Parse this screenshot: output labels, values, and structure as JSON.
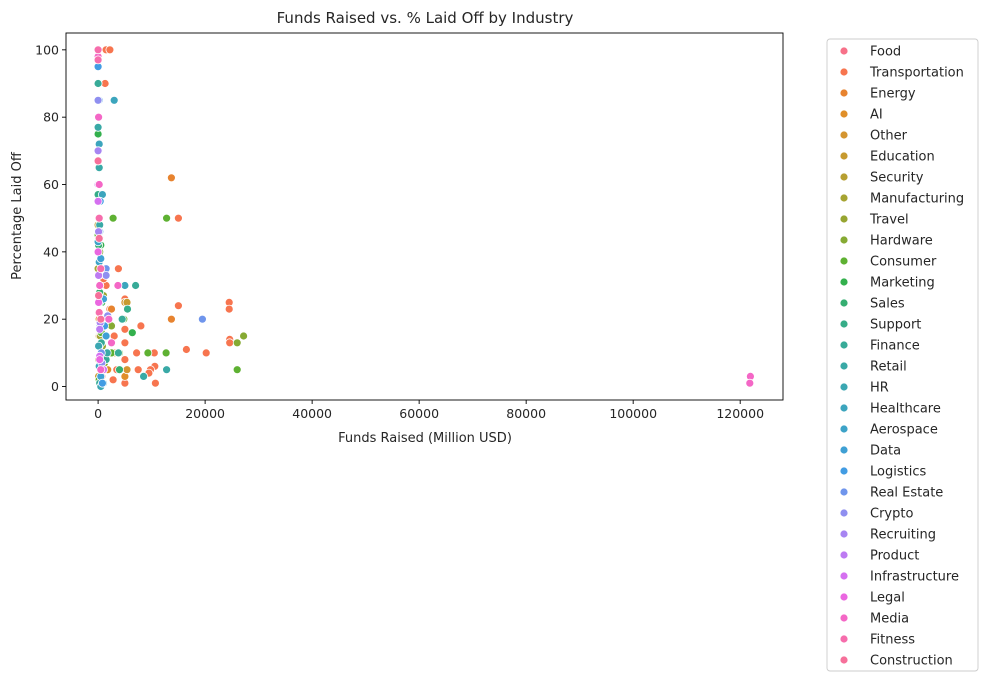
{
  "chart_data": {
    "type": "scatter",
    "title": "Funds Raised vs. % Laid Off by Industry",
    "xlabel": "Funds Raised (Million USD)",
    "ylabel": "Percentage Laid Off",
    "xlim": [
      -6000,
      128000
    ],
    "ylim": [
      -4,
      105
    ],
    "xticks": [
      0,
      20000,
      40000,
      60000,
      80000,
      100000,
      120000
    ],
    "yticks": [
      0,
      20,
      40,
      60,
      80,
      100
    ],
    "grid": false,
    "legend_position": "outside-right",
    "series": [
      {
        "name": "Food",
        "color": "#f77189",
        "points": [
          [
            0,
            100
          ],
          [
            100,
            45
          ],
          [
            300,
            20
          ],
          [
            200,
            8
          ],
          [
            50,
            60
          ]
        ]
      },
      {
        "name": "Transportation",
        "color": "#f7754f",
        "points": [
          [
            1500,
            100
          ],
          [
            2200,
            100
          ],
          [
            1300,
            90
          ],
          [
            3800,
            35
          ],
          [
            15000,
            50
          ],
          [
            15000,
            24
          ],
          [
            24500,
            25
          ],
          [
            24500,
            23
          ],
          [
            24600,
            14
          ],
          [
            24600,
            13
          ],
          [
            16500,
            11
          ],
          [
            20200,
            10
          ],
          [
            10500,
            10
          ],
          [
            10600,
            6
          ],
          [
            9800,
            5
          ],
          [
            9500,
            4
          ],
          [
            10700,
            1
          ],
          [
            7200,
            10
          ],
          [
            7500,
            5
          ],
          [
            8000,
            18
          ],
          [
            5000,
            26
          ],
          [
            5000,
            17
          ],
          [
            5000,
            13
          ],
          [
            5000,
            8
          ],
          [
            5000,
            3
          ],
          [
            5000,
            1
          ],
          [
            3000,
            15
          ],
          [
            3200,
            10
          ],
          [
            3500,
            5
          ],
          [
            2800,
            2
          ],
          [
            2000,
            20
          ],
          [
            2200,
            23
          ],
          [
            1500,
            30
          ],
          [
            1000,
            32
          ],
          [
            700,
            3
          ],
          [
            200,
            30
          ],
          [
            300,
            15
          ],
          [
            500,
            7
          ]
        ]
      },
      {
        "name": "Energy",
        "color": "#e7832f",
        "points": [
          [
            13700,
            62
          ],
          [
            13700,
            20
          ],
          [
            2500,
            23
          ],
          [
            500,
            10
          ],
          [
            200,
            15
          ]
        ]
      },
      {
        "name": "AI",
        "color": "#e08f29",
        "points": [
          [
            0,
            100
          ],
          [
            100,
            65
          ],
          [
            200,
            20
          ],
          [
            1800,
            5
          ],
          [
            5000,
            3
          ]
        ]
      },
      {
        "name": "Other",
        "color": "#d49530",
        "points": [
          [
            5000,
            25
          ],
          [
            4500,
            20
          ],
          [
            3000,
            10
          ],
          [
            5400,
            5
          ],
          [
            200,
            2
          ]
        ]
      },
      {
        "name": "Education",
        "color": "#c79a2f",
        "points": [
          [
            0,
            50
          ],
          [
            200,
            33
          ],
          [
            5400,
            25
          ],
          [
            300,
            12
          ],
          [
            100,
            3
          ]
        ]
      },
      {
        "name": "Security",
        "color": "#b79f31",
        "points": [
          [
            0,
            48
          ],
          [
            300,
            30
          ],
          [
            500,
            5
          ],
          [
            100,
            22
          ]
        ]
      },
      {
        "name": "Manufacturing",
        "color": "#a6a432",
        "points": [
          [
            0,
            35
          ],
          [
            200,
            25
          ],
          [
            400,
            15
          ],
          [
            100,
            8
          ]
        ]
      },
      {
        "name": "Travel",
        "color": "#97a531",
        "points": [
          [
            0,
            70
          ],
          [
            500,
            57
          ],
          [
            1000,
            27
          ],
          [
            800,
            12
          ]
        ]
      },
      {
        "name": "Hardware",
        "color": "#86aa33",
        "points": [
          [
            0,
            75
          ],
          [
            27200,
            15
          ],
          [
            26000,
            13
          ],
          [
            300,
            40
          ],
          [
            2500,
            18
          ],
          [
            1200,
            7
          ]
        ]
      },
      {
        "name": "Consumer",
        "color": "#5eb132",
        "points": [
          [
            0,
            100
          ],
          [
            0,
            95
          ],
          [
            0,
            80
          ],
          [
            100,
            60
          ],
          [
            200,
            55
          ],
          [
            100,
            50
          ],
          [
            0,
            45
          ],
          [
            12800,
            50
          ],
          [
            26000,
            5
          ],
          [
            2800,
            50
          ],
          [
            4800,
            20
          ],
          [
            2500,
            10
          ],
          [
            9300,
            10
          ],
          [
            12700,
            10
          ],
          [
            4000,
            10
          ],
          [
            300,
            30
          ],
          [
            600,
            16
          ],
          [
            200,
            2
          ]
        ]
      },
      {
        "name": "Marketing",
        "color": "#33b04d",
        "points": [
          [
            0,
            75
          ],
          [
            200,
            55
          ],
          [
            500,
            42
          ],
          [
            700,
            25
          ],
          [
            6400,
            16
          ]
        ]
      },
      {
        "name": "Sales",
        "color": "#35ae71",
        "points": [
          [
            0,
            60
          ],
          [
            100,
            42
          ],
          [
            300,
            28
          ],
          [
            1200,
            9
          ],
          [
            4000,
            5
          ]
        ]
      },
      {
        "name": "Support",
        "color": "#36ad88",
        "points": [
          [
            0,
            57
          ],
          [
            200,
            44
          ],
          [
            100,
            30
          ],
          [
            5500,
            23
          ],
          [
            200,
            12
          ]
        ]
      },
      {
        "name": "Finance",
        "color": "#38ab98",
        "points": [
          [
            0,
            90
          ],
          [
            100,
            70
          ],
          [
            200,
            55
          ],
          [
            3800,
            10
          ],
          [
            4500,
            20
          ],
          [
            7000,
            30
          ],
          [
            600,
            13
          ],
          [
            1500,
            8
          ],
          [
            300,
            1
          ]
        ]
      },
      {
        "name": "Retail",
        "color": "#39a9a6",
        "points": [
          [
            0,
            77
          ],
          [
            200,
            65
          ],
          [
            300,
            48
          ],
          [
            1700,
            10
          ],
          [
            12800,
            5
          ],
          [
            8500,
            3
          ]
        ]
      },
      {
        "name": "HR",
        "color": "#3ba7b2",
        "points": [
          [
            0,
            40
          ],
          [
            300,
            25
          ],
          [
            500,
            0
          ],
          [
            100,
            12
          ]
        ]
      },
      {
        "name": "Healthcare",
        "color": "#3ca5bd",
        "points": [
          [
            0,
            85
          ],
          [
            200,
            72
          ],
          [
            300,
            44
          ],
          [
            3000,
            85
          ],
          [
            800,
            57
          ],
          [
            5000,
            30
          ],
          [
            1000,
            1
          ],
          [
            200,
            6
          ]
        ]
      },
      {
        "name": "Aerospace",
        "color": "#3da3c8",
        "points": [
          [
            0,
            43
          ],
          [
            200,
            37
          ],
          [
            400,
            18
          ]
        ]
      },
      {
        "name": "Data",
        "color": "#3fa0d4",
        "points": [
          [
            0,
            67
          ],
          [
            300,
            46
          ],
          [
            500,
            38
          ],
          [
            1000,
            26
          ],
          [
            1500,
            15
          ],
          [
            500,
            3
          ]
        ]
      },
      {
        "name": "Logistics",
        "color": "#429ce3",
        "points": [
          [
            0,
            95
          ],
          [
            200,
            85
          ],
          [
            400,
            55
          ],
          [
            1500,
            33
          ],
          [
            1200,
            18
          ],
          [
            800,
            1
          ]
        ]
      },
      {
        "name": "Real Estate",
        "color": "#6f95ec",
        "points": [
          [
            19500,
            20
          ],
          [
            200,
            30
          ],
          [
            1500,
            35
          ],
          [
            600,
            10
          ]
        ]
      },
      {
        "name": "Crypto",
        "color": "#8f8ff0",
        "points": [
          [
            0,
            85
          ],
          [
            100,
            70
          ],
          [
            200,
            50
          ],
          [
            1500,
            33
          ],
          [
            1800,
            21
          ],
          [
            700,
            7
          ]
        ]
      },
      {
        "name": "Recruiting",
        "color": "#a785f2",
        "points": [
          [
            0,
            70
          ],
          [
            100,
            46
          ],
          [
            200,
            30
          ],
          [
            400,
            19
          ]
        ]
      },
      {
        "name": "Product",
        "color": "#bd7bf2",
        "points": [
          [
            0,
            60
          ],
          [
            100,
            33
          ],
          [
            300,
            17
          ]
        ]
      },
      {
        "name": "Infrastructure",
        "color": "#d570f0",
        "points": [
          [
            0,
            55
          ],
          [
            200,
            30
          ],
          [
            1000,
            5
          ],
          [
            300,
            9
          ]
        ]
      },
      {
        "name": "Legal",
        "color": "#ea67e0",
        "points": [
          [
            0,
            40
          ],
          [
            100,
            25
          ],
          [
            300,
            8
          ]
        ]
      },
      {
        "name": "Media",
        "color": "#f467c6",
        "points": [
          [
            121900,
            3
          ],
          [
            121800,
            1
          ],
          [
            0,
            98
          ],
          [
            100,
            80
          ],
          [
            200,
            60
          ],
          [
            300,
            30
          ],
          [
            2000,
            20
          ],
          [
            3700,
            30
          ],
          [
            2500,
            13
          ],
          [
            500,
            5
          ]
        ]
      },
      {
        "name": "Fitness",
        "color": "#f66dac",
        "points": [
          [
            0,
            100
          ],
          [
            0,
            97
          ],
          [
            100,
            67
          ],
          [
            200,
            50
          ],
          [
            500,
            35
          ],
          [
            200,
            22
          ]
        ]
      },
      {
        "name": "Construction",
        "color": "#f6709a",
        "points": [
          [
            0,
            67
          ],
          [
            200,
            44
          ],
          [
            100,
            27
          ],
          [
            500,
            20
          ]
        ]
      }
    ]
  }
}
